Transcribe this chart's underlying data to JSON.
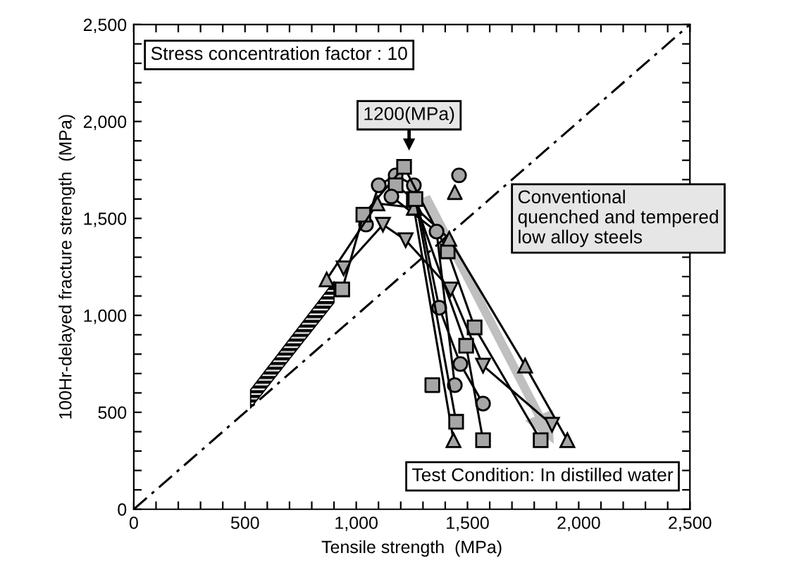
{
  "chart_data": {
    "type": "line",
    "xlabel": "Tensile strength  (MPa)",
    "ylabel": "100Hr-delayed fracture strength  (MPa)",
    "xlim": [
      0,
      2500
    ],
    "ylim": [
      0,
      2500
    ],
    "xticks": [
      0,
      {
        "value": 100,
        "label": null
      },
      {
        "value": 200,
        "label": null
      },
      {
        "value": 300,
        "label": null
      },
      {
        "value": 400,
        "label": null
      },
      500,
      {
        "value": 600,
        "label": null
      },
      {
        "value": 700,
        "label": null
      },
      {
        "value": 800,
        "label": null
      },
      {
        "value": 900,
        "label": null
      },
      {
        "value": 1000,
        "label": "1,000"
      },
      {
        "value": 1100,
        "label": null
      },
      {
        "value": 1200,
        "label": null
      },
      {
        "value": 1300,
        "label": null
      },
      {
        "value": 1400,
        "label": null
      },
      {
        "value": 1500,
        "label": "1,500"
      },
      {
        "value": 1600,
        "label": null
      },
      {
        "value": 1700,
        "label": null
      },
      {
        "value": 1800,
        "label": null
      },
      {
        "value": 1900,
        "label": null
      },
      {
        "value": 2000,
        "label": "2,000"
      },
      {
        "value": 2100,
        "label": null
      },
      {
        "value": 2200,
        "label": null
      },
      {
        "value": 2300,
        "label": null
      },
      {
        "value": 2400,
        "label": null
      },
      {
        "value": 2500,
        "label": "2,500"
      }
    ],
    "yticks": [
      0,
      {
        "value": 100,
        "label": null
      },
      {
        "value": 200,
        "label": null
      },
      {
        "value": 300,
        "label": null
      },
      {
        "value": 400,
        "label": null
      },
      500,
      {
        "value": 600,
        "label": null
      },
      {
        "value": 700,
        "label": null
      },
      {
        "value": 800,
        "label": null
      },
      {
        "value": 900,
        "label": null
      },
      {
        "value": 1000,
        "label": "1,000"
      },
      {
        "value": 1100,
        "label": null
      },
      {
        "value": 1200,
        "label": null
      },
      {
        "value": 1300,
        "label": null
      },
      {
        "value": 1400,
        "label": null
      },
      {
        "value": 1500,
        "label": "1,500"
      },
      {
        "value": 1600,
        "label": null
      },
      {
        "value": 1700,
        "label": null
      },
      {
        "value": 1800,
        "label": null
      },
      {
        "value": 1900,
        "label": null
      },
      {
        "value": 2000,
        "label": "2,000"
      },
      {
        "value": 2100,
        "label": null
      },
      {
        "value": 2200,
        "label": null
      },
      {
        "value": 2300,
        "label": null
      },
      {
        "value": 2400,
        "label": null
      },
      {
        "value": 2500,
        "label": "2,500"
      }
    ],
    "grid": false,
    "legend": false,
    "series": [
      {
        "type": "line",
        "x": [
          0,
          2500
        ],
        "values": [
          0,
          2500
        ],
        "color": "#000000",
        "line_style": "dashdot",
        "marker": "none"
      },
      {
        "type": "area",
        "x": [
          525,
          900
        ],
        "values": [
          null,
          null
        ],
        "lower": [
          522,
          1065
        ],
        "upper": [
          616,
          1175
        ],
        "color": "#000000"
      },
      {
        "x": [
          1044,
          1101,
          1177,
          1259,
          1373,
          1468,
          1570
        ],
        "values": [
          1468,
          1671,
          1722,
          1671,
          1039,
          749,
          545
        ],
        "color": "#000000",
        "marker": "circle"
      },
      {
        "x": [
          937,
          1032,
          1215,
          1411,
          1532,
          1829
        ],
        "values": [
          1134,
          1519,
          1766,
          1330,
          938,
          356
        ],
        "color": "#000000",
        "marker": "square"
      },
      {
        "x": [
          867,
          1095,
          1266,
          1418,
          1759,
          1949
        ],
        "values": [
          1185,
          1577,
          1555,
          1395,
          741,
          356
        ],
        "color": "#000000",
        "marker": "triangle"
      },
      {
        "x": [
          943,
          1120,
          1222,
          1424,
          1570,
          1880
        ],
        "values": [
          1243,
          1468,
          1388,
          1134,
          741,
          436
        ],
        "color": "#000000",
        "marker": "triangle_down"
      },
      {
        "x": [
          1177,
          1259,
          1494,
          1570
        ],
        "values": [
          1671,
          1600,
          843,
          356
        ],
        "color": "#000000",
        "marker": "square"
      },
      {
        "x": [
          1158,
          1361,
          1443
        ],
        "values": [
          1613,
          1432,
          640
        ],
        "color": "#000000",
        "marker": "circle"
      },
      {
        "x": [
          1259,
          1437
        ],
        "values": [
          1555,
          356
        ],
        "color": "#000000",
        "marker": "triangle"
      },
      {
        "x": [
          1266,
          1449
        ],
        "values": [
          1600,
          451
        ],
        "color": "#000000",
        "marker": "square"
      },
      {
        "type": "scatter",
        "x": [
          1462
        ],
        "values": [
          1722
        ],
        "color": "#000000",
        "marker": "circle"
      },
      {
        "type": "scatter",
        "x": [
          1443
        ],
        "values": [
          1635
        ],
        "color": "#000000",
        "marker": "triangle"
      },
      {
        "type": "scatter",
        "x": [
          1342
        ],
        "values": [
          640
        ],
        "color": "#000000",
        "marker": "square"
      }
    ],
    "annotations": [
      "Stress concentration factor : 10",
      "1200(MPa)",
      "Conventional\nquenched and tempered\nlow alloy steels",
      "Test Condition: In distilled water"
    ]
  }
}
